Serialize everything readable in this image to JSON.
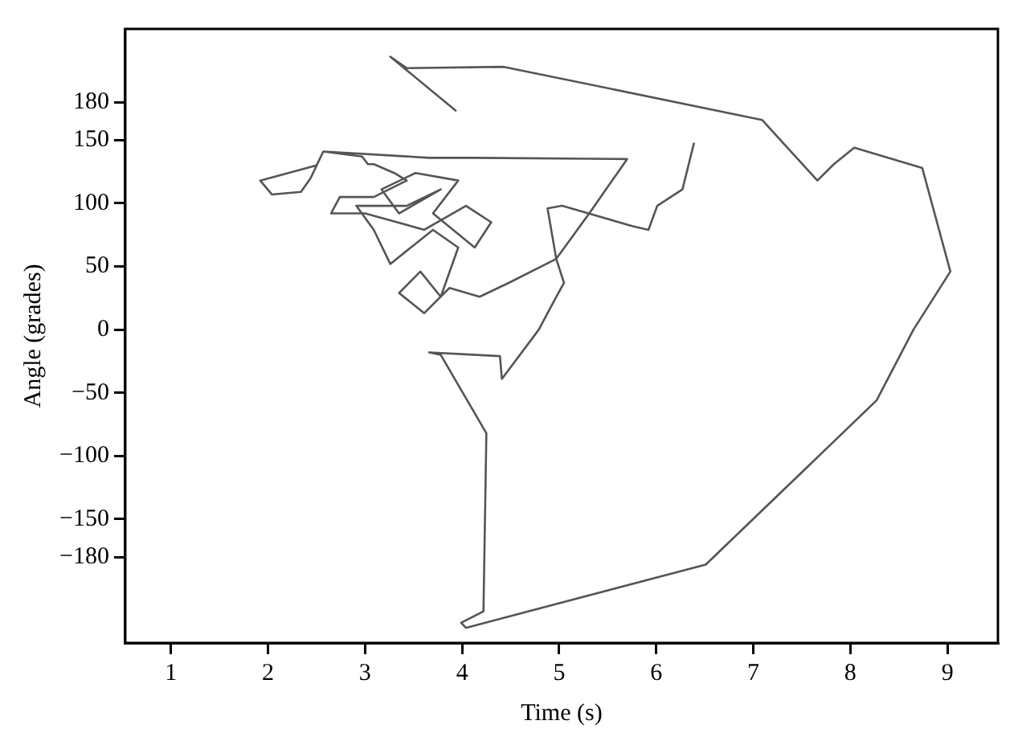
{
  "chart_data": {
    "type": "line",
    "xlabel": "Time (s)",
    "ylabel": "Angle (grades)",
    "xlim": [
      0.53,
      9.52
    ],
    "ylim": [
      -248,
      238
    ],
    "xticks": [
      1,
      2,
      3,
      4,
      5,
      6,
      7,
      8,
      9
    ],
    "yticks": [
      -180,
      -150,
      -100,
      -50,
      0,
      50,
      100,
      150,
      180
    ],
    "grid": false,
    "legend": false,
    "marker": "none",
    "line_style": "solid",
    "series": [
      {
        "color": "#555555",
        "x": [
          3.94,
          3.26,
          3.43,
          4.43,
          7.09,
          7.66,
          7.83,
          8.04,
          8.74,
          9.03,
          8.65,
          8.27,
          6.51,
          4.04,
          3.99,
          4.22,
          4.25,
          3.78,
          3.66,
          4.39,
          4.41,
          4.79,
          4.97,
          5.05,
          4.97,
          4.48,
          4.18,
          3.87,
          3.61,
          3.35,
          3.57,
          3.78,
          3.96,
          3.7,
          3.26,
          3.09,
          2.91,
          3.43,
          3.78,
          3.35,
          3.17,
          3.52,
          3.96,
          3.7,
          4.13,
          4.3,
          4.04,
          3.61,
          3.0,
          2.65,
          2.74,
          3.09,
          3.43,
          3.3,
          3.09,
          3.03,
          2.97,
          2.57,
          2.44,
          2.34,
          2.04,
          1.92,
          2.5,
          2.57,
          3.66,
          4.13,
          5.7,
          5.31,
          4.97,
          4.88,
          5.03,
          5.75,
          5.92,
          6.01,
          6.27,
          6.39
        ],
        "values": [
          173,
          216,
          207,
          208,
          166,
          118,
          131,
          144,
          128,
          46,
          0,
          -56,
          -186,
          -236,
          -232,
          -223,
          -82,
          -20,
          -18,
          -21,
          -39,
          0,
          26,
          37,
          56,
          37,
          26,
          33,
          13,
          29,
          46,
          26,
          65,
          79,
          52,
          79,
          98,
          98,
          111,
          92,
          111,
          124,
          118,
          92,
          65,
          85,
          98,
          79,
          92,
          92,
          105,
          105,
          118,
          124,
          131,
          131,
          137,
          141,
          120,
          109,
          107,
          118,
          130,
          141,
          136,
          136,
          135,
          92,
          56,
          96,
          98,
          82,
          79,
          98,
          111,
          148
        ]
      }
    ]
  }
}
